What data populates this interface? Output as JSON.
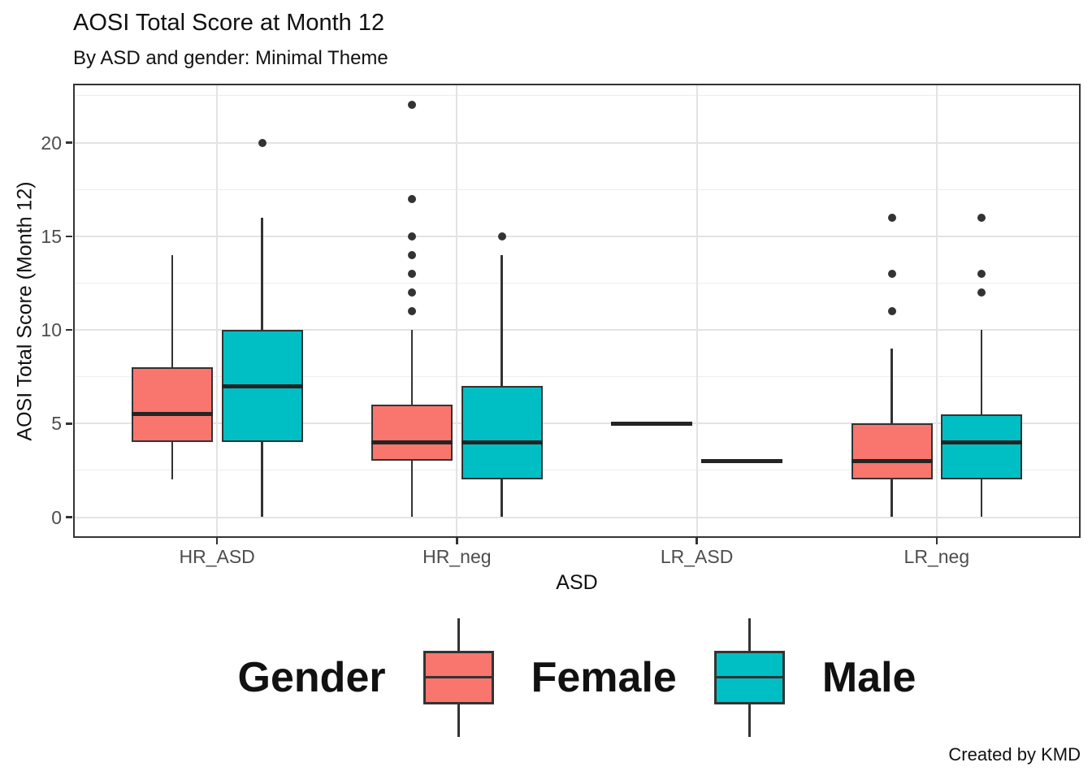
{
  "title": "AOSI Total Score at Month 12",
  "subtitle": "By ASD and gender: Minimal Theme",
  "caption": "Created by KMD",
  "x_axis": {
    "title": "ASD",
    "categories": [
      "HR_ASD",
      "HR_neg",
      "LR_ASD",
      "LR_neg"
    ]
  },
  "y_axis": {
    "title": "AOSI Total Score (Month 12)",
    "ticks": [
      0,
      5,
      10,
      15,
      20
    ],
    "minor_ticks": [
      2.5,
      7.5,
      12.5,
      17.5,
      22.5
    ]
  },
  "legend": {
    "title": "Gender",
    "items": [
      {
        "label": "Female",
        "color": "#F8766D"
      },
      {
        "label": "Male",
        "color": "#00BFC4"
      }
    ]
  },
  "colors": {
    "female_fill": "#F8766D",
    "male_fill": "#00BFC4",
    "line": "#333333",
    "median": "#242424",
    "grid_major": "#e3e3e3",
    "grid_minor": "#ededed",
    "tick_label": "#4d4d4d"
  },
  "chart_data": {
    "type": "boxplot",
    "categories": [
      "HR_ASD",
      "HR_neg",
      "LR_ASD",
      "LR_neg"
    ],
    "ylim": [
      -1.1,
      23.1
    ],
    "grid": true,
    "legend_position": "bottom",
    "series": [
      {
        "name": "Female",
        "color": "#F8766D",
        "boxes": [
          {
            "category": "HR_ASD",
            "whisker_low": 2,
            "q1": 4,
            "median": 5.5,
            "q3": 8,
            "whisker_high": 14,
            "outliers": []
          },
          {
            "category": "HR_neg",
            "whisker_low": 0,
            "q1": 3,
            "median": 4,
            "q3": 6,
            "whisker_high": 10,
            "outliers": [
              11,
              12,
              13,
              14,
              15,
              17,
              22
            ]
          },
          {
            "category": "LR_ASD",
            "whisker_low": 5,
            "q1": 5,
            "median": 5,
            "q3": 5,
            "whisker_high": 5,
            "outliers": []
          },
          {
            "category": "LR_neg",
            "whisker_low": 0,
            "q1": 2,
            "median": 3,
            "q3": 5,
            "whisker_high": 9,
            "outliers": [
              11,
              13,
              16
            ]
          }
        ]
      },
      {
        "name": "Male",
        "color": "#00BFC4",
        "boxes": [
          {
            "category": "HR_ASD",
            "whisker_low": 0,
            "q1": 4,
            "median": 7,
            "q3": 10,
            "whisker_high": 16,
            "outliers": [
              20
            ]
          },
          {
            "category": "HR_neg",
            "whisker_low": 0,
            "q1": 2,
            "median": 4,
            "q3": 7,
            "whisker_high": 14,
            "outliers": [
              15
            ]
          },
          {
            "category": "LR_ASD",
            "whisker_low": 3,
            "q1": 3,
            "median": 3,
            "q3": 3,
            "whisker_high": 3,
            "outliers": []
          },
          {
            "category": "LR_neg",
            "whisker_low": 0,
            "q1": 2,
            "median": 4,
            "q3": 5.5,
            "whisker_high": 10,
            "outliers": [
              12,
              13,
              16
            ]
          }
        ]
      }
    ]
  }
}
